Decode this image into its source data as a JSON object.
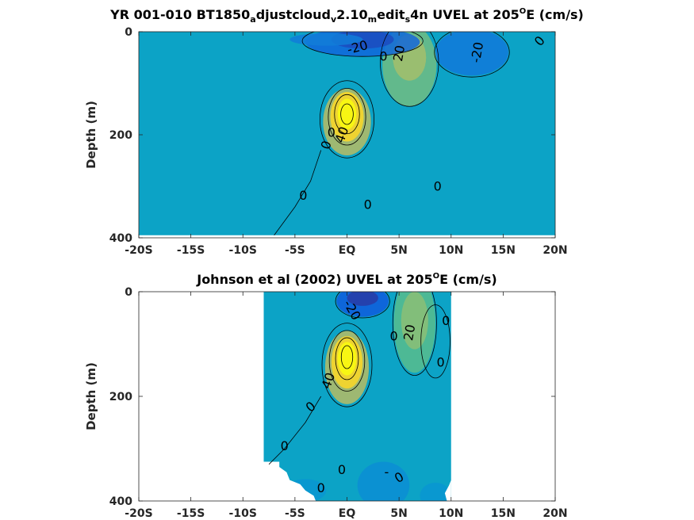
{
  "chart_data": [
    {
      "type": "heatmap",
      "title_parts": [
        {
          "t": "YR 001-010 BT1850",
          "d": "n"
        },
        {
          "t": "a",
          "d": "sub"
        },
        {
          "t": "djustcloud",
          "d": "n"
        },
        {
          "t": "v",
          "d": "sub"
        },
        {
          "t": "2.10",
          "d": "n"
        },
        {
          "t": "m",
          "d": "sub"
        },
        {
          "t": "edit",
          "d": "n"
        },
        {
          "t": "s",
          "d": "sub"
        },
        {
          "t": "4n UVEL at 205",
          "d": "n"
        },
        {
          "t": "O",
          "d": "sup"
        },
        {
          "t": "E (cm/s)",
          "d": "n"
        }
      ],
      "xlabel": "",
      "ylabel": "Depth (m)",
      "xlim": [
        -20,
        20
      ],
      "ylim": [
        0,
        400
      ],
      "y_reversed": true,
      "x_tick_values": [
        -20,
        -15,
        -10,
        -5,
        0,
        5,
        10,
        15,
        20
      ],
      "x_tick_labels": [
        "-20S",
        "-15S",
        "-10S",
        "-5S",
        "EQ",
        "5N",
        "10N",
        "15N",
        "20N"
      ],
      "y_tick_values": [
        0,
        200,
        400
      ],
      "y_tick_labels": [
        "0",
        "200",
        "400"
      ],
      "colormap": "parula",
      "clim": [
        -50,
        100
      ],
      "data_extent": {
        "lat": [
          -20,
          20
        ],
        "depth_max": 395
      },
      "cells": [
        {
          "lat": 0,
          "depth": 160,
          "u": 95
        },
        {
          "lat": 6,
          "depth": 50,
          "u": 30
        },
        {
          "lat": 1.5,
          "depth": 20,
          "u": -35
        },
        {
          "lat": 12,
          "depth": 25,
          "u": -22
        },
        {
          "lat": -5,
          "depth": 280,
          "u": 0
        }
      ],
      "contour_labels": [
        {
          "lat": 1,
          "depth": 30,
          "text": "-20",
          "rot": -15
        },
        {
          "lat": 3.5,
          "depth": 48,
          "text": "0",
          "rot": 0
        },
        {
          "lat": 5,
          "depth": 42,
          "text": "20",
          "rot": -80
        },
        {
          "lat": 12.5,
          "depth": 40,
          "text": "-20",
          "rot": -80
        },
        {
          "lat": 18.5,
          "depth": 18,
          "text": "0",
          "rot": -50
        },
        {
          "lat": -2,
          "depth": 220,
          "text": "0",
          "rot": -70
        },
        {
          "lat": -0.5,
          "depth": 200,
          "text": "40",
          "rot": -70
        },
        {
          "lat": -1.5,
          "depth": 195,
          "text": "0",
          "rot": 0
        },
        {
          "lat": -4.2,
          "depth": 318,
          "text": "0",
          "rot": 0
        },
        {
          "lat": 2,
          "depth": 335,
          "text": "0",
          "rot": 0
        },
        {
          "lat": 8.7,
          "depth": 300,
          "text": "0",
          "rot": 0
        }
      ]
    },
    {
      "type": "heatmap",
      "title_parts": [
        {
          "t": "Johnson et al (2002) UVEL at 205",
          "d": "n"
        },
        {
          "t": "O",
          "d": "sup"
        },
        {
          "t": "E (cm/s)",
          "d": "n"
        }
      ],
      "xlabel": "",
      "ylabel": "Depth (m)",
      "xlim": [
        -20,
        20
      ],
      "ylim": [
        0,
        400
      ],
      "y_reversed": true,
      "x_tick_values": [
        -20,
        -15,
        -10,
        -5,
        0,
        5,
        10,
        15,
        20
      ],
      "x_tick_labels": [
        "-20S",
        "-15S",
        "-10S",
        "-5S",
        "EQ",
        "5N",
        "10N",
        "15N",
        "20N"
      ],
      "y_tick_values": [
        0,
        200,
        400
      ],
      "y_tick_labels": [
        "0",
        "200",
        "400"
      ],
      "colormap": "parula",
      "clim": [
        -50,
        100
      ],
      "data_extent": {
        "lat": [
          -8,
          10
        ],
        "depth_max": 400
      },
      "cells": [
        {
          "lat": 0,
          "depth": 130,
          "u": 100
        },
        {
          "lat": 6,
          "depth": 60,
          "u": 25
        },
        {
          "lat": 1.5,
          "depth": 20,
          "u": -30
        },
        {
          "lat": 4,
          "depth": 380,
          "u": -5
        }
      ],
      "contour_labels": [
        {
          "lat": 0.5,
          "depth": 35,
          "text": "-20",
          "rot": 60
        },
        {
          "lat": 4.5,
          "depth": 85,
          "text": "0",
          "rot": 0
        },
        {
          "lat": 6,
          "depth": 78,
          "text": "20",
          "rot": -80
        },
        {
          "lat": 9.5,
          "depth": 55,
          "text": "0",
          "rot": 0
        },
        {
          "lat": 9,
          "depth": 135,
          "text": "0",
          "rot": 0
        },
        {
          "lat": -1.8,
          "depth": 170,
          "text": "40",
          "rot": -70
        },
        {
          "lat": -3.5,
          "depth": 220,
          "text": "0",
          "rot": -40
        },
        {
          "lat": -6,
          "depth": 295,
          "text": "0",
          "rot": 0
        },
        {
          "lat": -0.5,
          "depth": 340,
          "text": "0",
          "rot": 0
        },
        {
          "lat": 3.8,
          "depth": 345,
          "text": "-",
          "rot": 0
        },
        {
          "lat": 5,
          "depth": 355,
          "text": "0",
          "rot": -30
        },
        {
          "lat": -2.5,
          "depth": 375,
          "text": "0",
          "rot": 0
        }
      ]
    }
  ]
}
